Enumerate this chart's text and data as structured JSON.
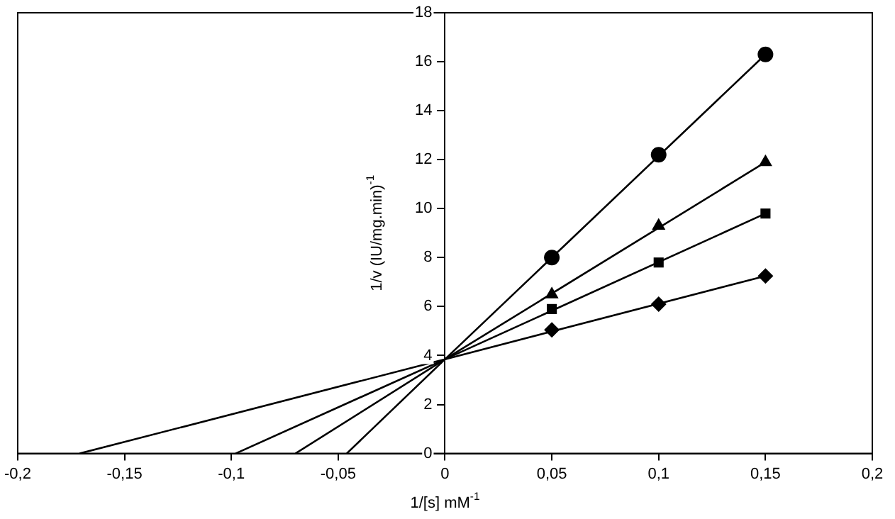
{
  "chart_data": {
    "type": "scatter",
    "xlabel": "1/[s] mM$^{-1}$",
    "ylabel": "1/v (IU/mg.min)$^{-1}$",
    "xlim": [
      -0.2,
      0.2
    ],
    "ylim": [
      0,
      18
    ],
    "xticks": [
      {
        "value": -0.2,
        "label": "-0,2"
      },
      {
        "value": -0.15,
        "label": "-0,15"
      },
      {
        "value": -0.1,
        "label": "-0,1"
      },
      {
        "value": -0.05,
        "label": "-0,05"
      },
      0,
      {
        "value": 0.05,
        "label": "0,05"
      },
      {
        "value": 0.1,
        "label": "0,1"
      },
      {
        "value": 0.15,
        "label": "0,15"
      },
      {
        "value": 0.2,
        "label": "0,2"
      }
    ],
    "yticks": [
      0,
      2,
      4,
      6,
      8,
      10,
      12,
      14,
      16,
      18
    ],
    "grid": false,
    "legend": false,
    "series": [
      {
        "type": "line",
        "marker": "none",
        "color": "#000000",
        "x": [
          -0.046,
          0,
          0.15
        ],
        "values": [
          0,
          3.85,
          16.3
        ]
      },
      {
        "type": "line",
        "marker": "none",
        "color": "#000000",
        "x": [
          -0.098,
          0,
          0.15
        ],
        "values": [
          0,
          3.85,
          11.9
        ]
      },
      {
        "type": "line",
        "marker": "none",
        "color": "#000000",
        "x": [
          -0.07,
          0,
          0.15
        ],
        "values": [
          0,
          3.85,
          9.8
        ]
      },
      {
        "type": "line",
        "marker": "none",
        "color": "#000000",
        "x": [
          -0.171,
          0,
          0.15
        ],
        "values": [
          0,
          3.85,
          7.25
        ]
      },
      {
        "type": "scatter",
        "marker": "circle",
        "color": "#000000",
        "x": [
          0.05,
          0.1,
          0.15
        ],
        "values": [
          8.0,
          12.2,
          16.3
        ]
      },
      {
        "type": "scatter",
        "marker": "triangle",
        "color": "#000000",
        "x": [
          0.05,
          0.1,
          0.15
        ],
        "values": [
          6.5,
          9.3,
          11.9
        ]
      },
      {
        "type": "scatter",
        "marker": "square",
        "color": "#000000",
        "x": [
          0.05,
          0.1,
          0.15
        ],
        "values": [
          5.9,
          7.8,
          9.8
        ]
      },
      {
        "type": "scatter",
        "marker": "diamond",
        "color": "#000000",
        "x": [
          0.05,
          0.1,
          0.15
        ],
        "values": [
          5.05,
          6.1,
          7.25
        ]
      }
    ]
  }
}
